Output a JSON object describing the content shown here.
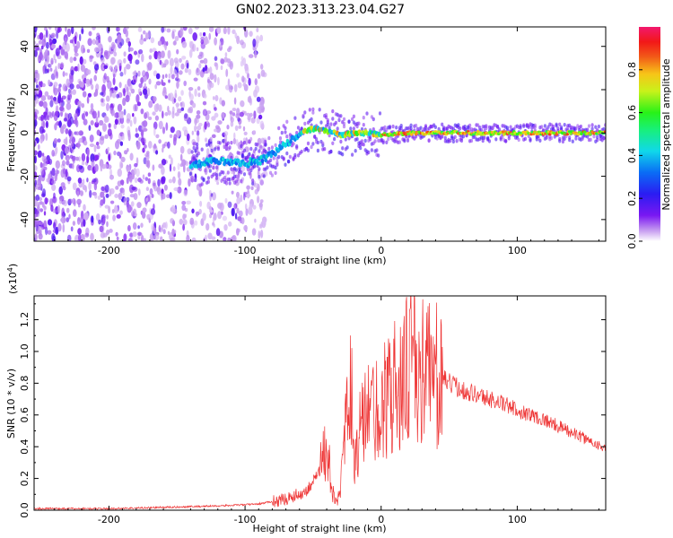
{
  "title": "GN02.2023.313.23.04.G27",
  "chart_data": [
    {
      "type": "heatmap",
      "xlabel": "Height of straight line (km)",
      "ylabel": "Frequency (Hz)",
      "xlim": [
        -255,
        165
      ],
      "ylim": [
        -50,
        49
      ],
      "xticks": [
        -200,
        -100,
        0,
        100
      ],
      "yticks": [
        -40,
        -20,
        0,
        20,
        40
      ],
      "colorbar": {
        "label": "Normalized spectral amplitude",
        "range": [
          0.0,
          1.0
        ],
        "ticks": [
          "0.0",
          "0.2",
          "0.4",
          "0.6",
          "0.8"
        ],
        "colormap": "rainbow (purple-blue-cyan-green-yellow-red-magenta)"
      },
      "ridge": {
        "x": [
          -140,
          -130,
          -120,
          -110,
          -100,
          -90,
          -80,
          -70,
          -60,
          -50,
          -40,
          -30,
          -20,
          -10,
          0,
          20,
          40,
          60,
          80,
          100,
          120,
          140,
          165
        ],
        "y": [
          -15,
          -14,
          -13,
          -14,
          -14,
          -13,
          -10,
          -5,
          0,
          2,
          1,
          -1,
          0,
          0,
          -1,
          0,
          0,
          0,
          0,
          0,
          0,
          0,
          0
        ]
      },
      "noise_region_x": [
        -255,
        -85
      ]
    },
    {
      "type": "line",
      "xlabel": "Height of straight line (km)",
      "ylabel": "SNR (10 * v/v)",
      "y_scale_label": "(x10",
      "y_scale_exp": "4",
      "y_scale_close": ")",
      "xlim": [
        -255,
        165
      ],
      "ylim": [
        0,
        1.35
      ],
      "xticks": [
        -200,
        -100,
        0,
        100
      ],
      "yticks": [
        "0.0",
        "0.2",
        "0.4",
        "0.6",
        "0.8",
        "1.0",
        "1.2"
      ],
      "series": [
        {
          "color": "#ee3333",
          "x": [
            -255,
            -200,
            -150,
            -110,
            -90,
            -70,
            -55,
            -45,
            -42,
            -38,
            -36,
            -33,
            -30,
            -28,
            -25,
            -22,
            -20,
            -17,
            -15,
            -10,
            -5,
            0,
            5,
            10,
            15,
            20,
            25,
            30,
            35,
            40,
            50,
            60,
            70,
            80,
            90,
            100,
            110,
            120,
            130,
            140,
            150,
            160,
            165
          ],
          "y": [
            0.01,
            0.01,
            0.02,
            0.03,
            0.04,
            0.07,
            0.12,
            0.25,
            0.38,
            0.3,
            0.12,
            0.05,
            0.1,
            0.35,
            0.6,
            0.85,
            0.25,
            0.4,
            0.55,
            0.6,
            0.62,
            0.68,
            0.72,
            0.78,
            0.85,
            0.9,
            0.95,
            0.9,
            0.88,
            0.85,
            0.8,
            0.76,
            0.73,
            0.7,
            0.67,
            0.63,
            0.6,
            0.57,
            0.53,
            0.49,
            0.45,
            0.41,
            0.39
          ]
        }
      ]
    }
  ]
}
